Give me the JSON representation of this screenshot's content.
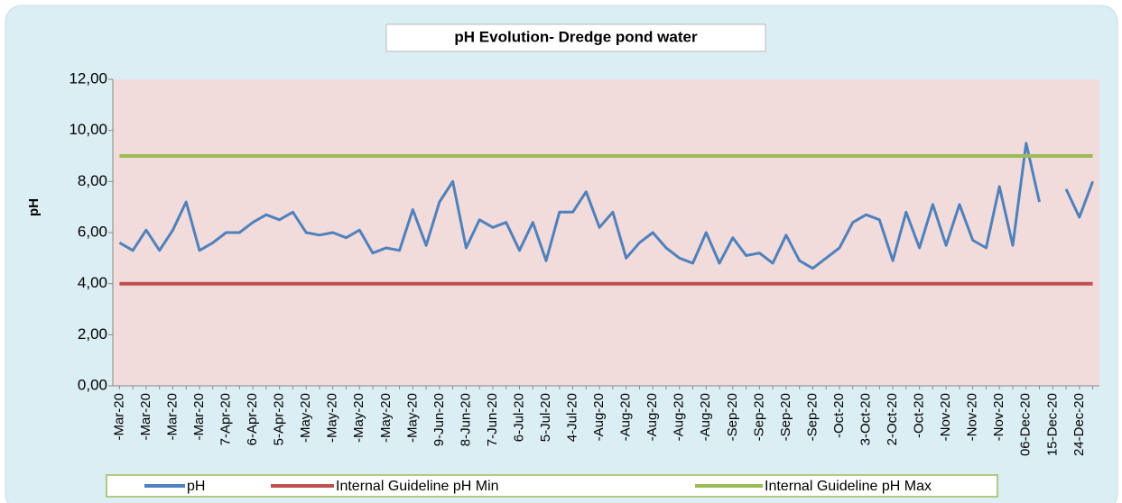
{
  "chart_data": {
    "type": "line",
    "title": "pH Evolution- Dredge pond water",
    "y_label": "pH",
    "categories": [
      "-Mar-20",
      null,
      "-Mar-20",
      null,
      "-Mar-20",
      null,
      "-Mar-20",
      null,
      "7-Apr-20",
      null,
      "6-Apr-20",
      null,
      "5-Apr-20",
      null,
      "-May-20",
      null,
      "-May-20",
      null,
      "-May-20",
      null,
      "-May-20",
      null,
      "-May-20",
      null,
      "9-Jun-20",
      null,
      "8-Jun-20",
      null,
      "7-Jun-20",
      null,
      "6-Jul-20",
      null,
      "5-Jul-20",
      null,
      "4-Jul-20",
      null,
      "-Aug-20",
      null,
      "-Aug-20",
      null,
      "-Aug-20",
      null,
      "-Aug-20",
      null,
      "-Aug-20",
      null,
      "-Sep-20",
      null,
      "-Sep-20",
      null,
      "-Sep-20",
      null,
      "-Sep-20",
      null,
      "-Oct-20",
      null,
      "3-Oct-20",
      null,
      "2-Oct-20",
      null,
      "-Oct-20",
      null,
      "-Nov-20",
      null,
      "-Nov-20",
      null,
      "-Nov-20",
      null,
      "06-Dec-20",
      null,
      "15-Dec-20",
      null,
      "24-Dec-20",
      null
    ],
    "series": [
      {
        "name": "pH",
        "color": "#4f81bd",
        "values": [
          5.6,
          5.3,
          6.1,
          5.3,
          6.1,
          7.2,
          5.3,
          5.6,
          6.0,
          6.0,
          6.4,
          6.7,
          6.5,
          6.8,
          6.0,
          5.9,
          6.0,
          5.8,
          6.1,
          5.2,
          5.4,
          5.3,
          6.9,
          5.5,
          7.2,
          8.0,
          5.4,
          6.5,
          6.2,
          6.4,
          5.3,
          6.4,
          4.9,
          6.8,
          6.8,
          7.6,
          6.2,
          6.8,
          5.0,
          5.6,
          6.0,
          5.4,
          5.0,
          4.8,
          6.0,
          4.8,
          5.8,
          5.1,
          5.2,
          4.8,
          5.9,
          4.9,
          4.6,
          5.0,
          5.4,
          6.4,
          6.7,
          6.5,
          4.9,
          6.8,
          5.4,
          7.1,
          5.5,
          7.1,
          5.7,
          5.4,
          7.8,
          5.5,
          9.5,
          7.2,
          null,
          7.7,
          6.6,
          8.0
        ]
      },
      {
        "name": "Internal Guideline pH Min",
        "color": "#c0504d",
        "values": [
          4,
          4,
          4,
          4,
          4,
          4,
          4,
          4,
          4,
          4,
          4,
          4,
          4,
          4,
          4,
          4,
          4,
          4,
          4,
          4,
          4,
          4,
          4,
          4,
          4,
          4,
          4,
          4,
          4,
          4,
          4,
          4,
          4,
          4,
          4,
          4,
          4,
          4,
          4,
          4,
          4,
          4,
          4,
          4,
          4,
          4,
          4,
          4,
          4,
          4,
          4,
          4,
          4,
          4,
          4,
          4,
          4,
          4,
          4,
          4,
          4,
          4,
          4,
          4,
          4,
          4,
          4,
          4,
          4,
          4,
          4,
          4,
          4,
          4
        ]
      },
      {
        "name": "Internal Guideline pH Max",
        "color": "#9bbb59",
        "values": [
          9,
          9,
          9,
          9,
          9,
          9,
          9,
          9,
          9,
          9,
          9,
          9,
          9,
          9,
          9,
          9,
          9,
          9,
          9,
          9,
          9,
          9,
          9,
          9,
          9,
          9,
          9,
          9,
          9,
          9,
          9,
          9,
          9,
          9,
          9,
          9,
          9,
          9,
          9,
          9,
          9,
          9,
          9,
          9,
          9,
          9,
          9,
          9,
          9,
          9,
          9,
          9,
          9,
          9,
          9,
          9,
          9,
          9,
          9,
          9,
          9,
          9,
          9,
          9,
          9,
          9,
          9,
          9,
          9,
          9,
          9,
          9,
          9,
          9
        ]
      }
    ],
    "ylim": [
      0,
      12
    ],
    "yticks": [
      {
        "value": 0,
        "label": "0,00"
      },
      {
        "value": 2,
        "label": "2,00"
      },
      {
        "value": 4,
        "label": "4,00"
      },
      {
        "value": 6,
        "label": "6,00"
      },
      {
        "value": 8,
        "label": "8,00"
      },
      {
        "value": 10,
        "label": "10,00"
      },
      {
        "value": 12,
        "label": "12,00"
      }
    ],
    "legend": "bottom"
  }
}
